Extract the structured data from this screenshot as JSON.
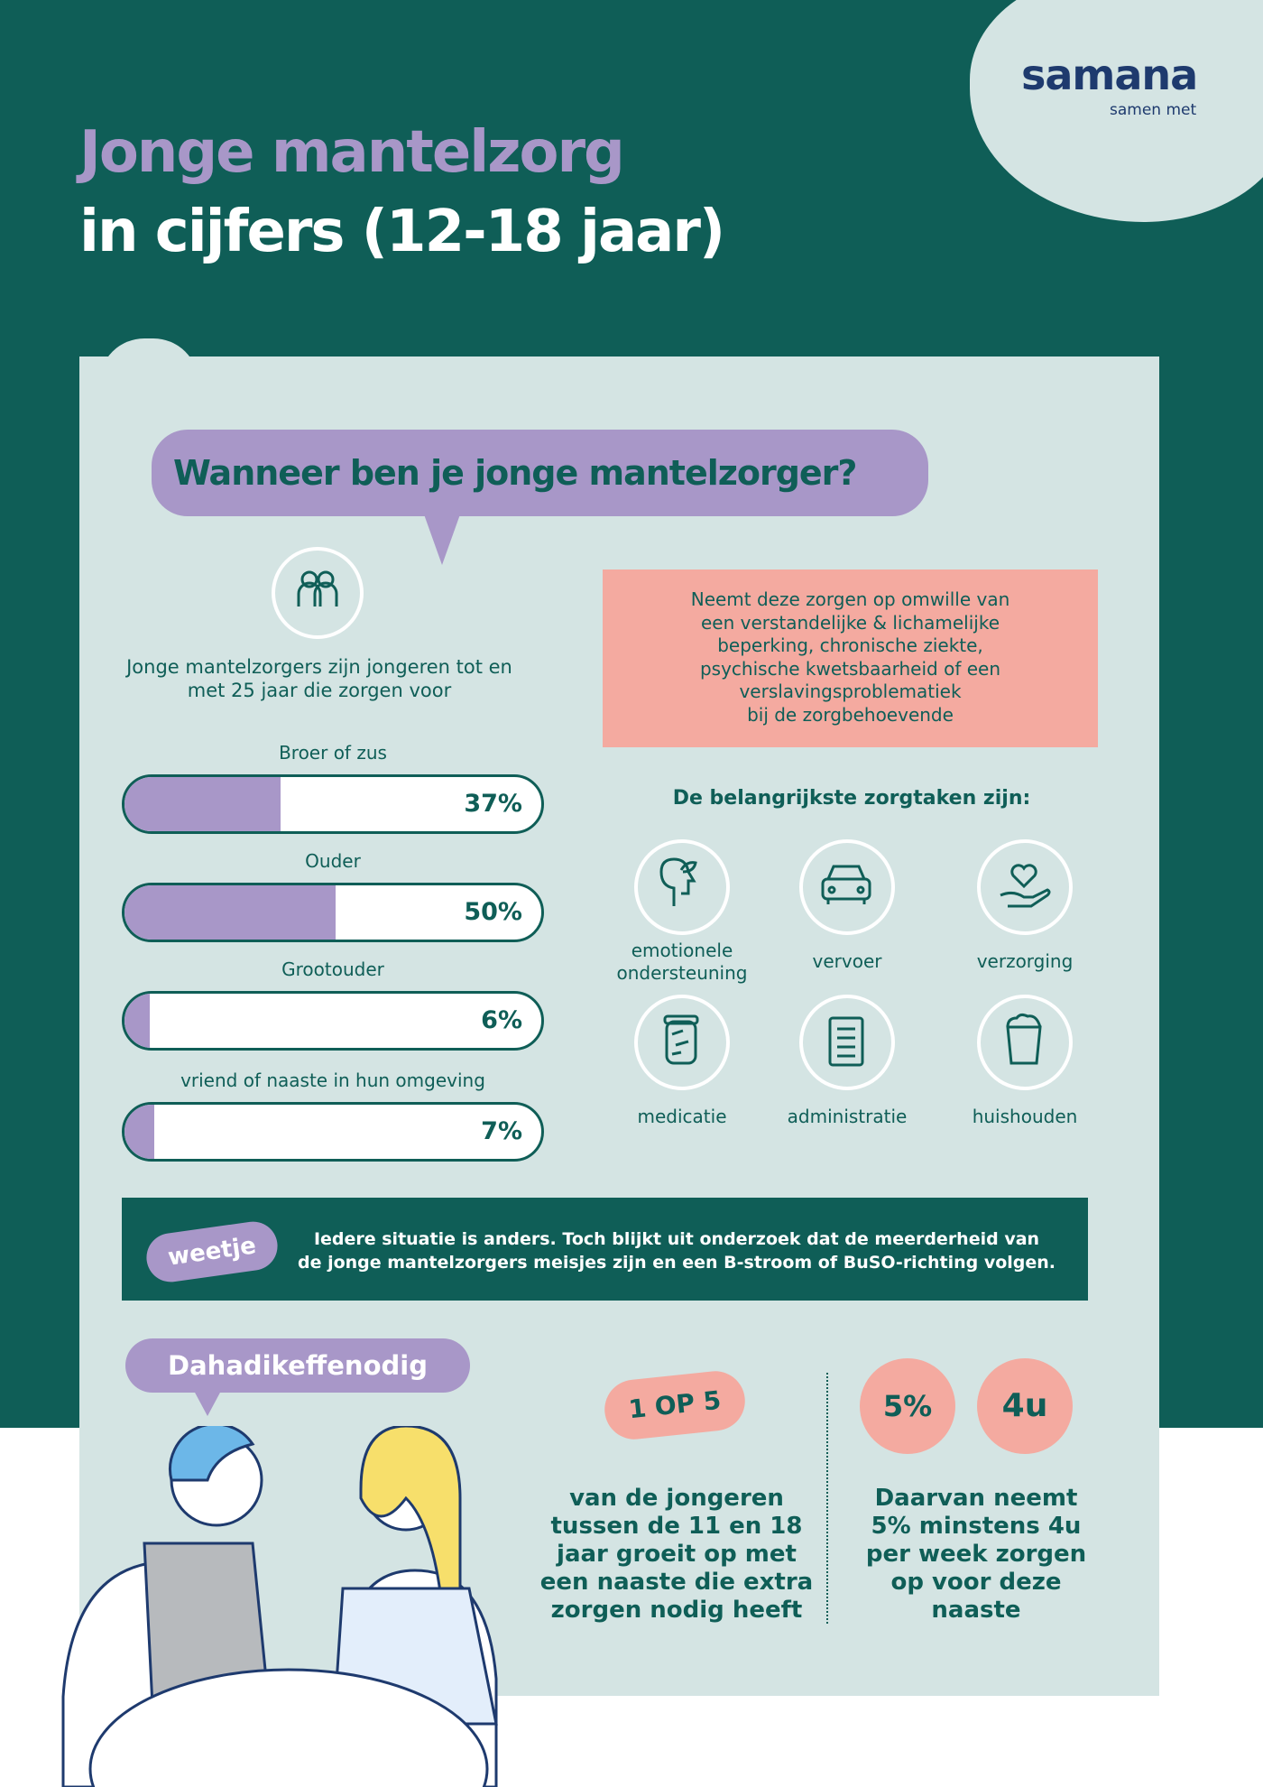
{
  "logo": {
    "name": "samana",
    "tagline": "samen met"
  },
  "header": {
    "title_line1": "Jonge mantelzorg",
    "title_line2": "in cijfers (12-18 jaar)"
  },
  "section": {
    "title": "Wanneer ben je jonge mantelzorger?",
    "intro_lines": [
      "Jonge mantelzorgers zijn jongeren tot en",
      "met 25 jaar die zorgen voor"
    ],
    "bars": {
      "xlim": [
        0,
        100
      ],
      "items": [
        {
          "label": "Broer of zus",
          "value": 37,
          "value_label": "37%"
        },
        {
          "label": "Ouder",
          "value": 50,
          "value_label": "50%"
        },
        {
          "label": "Grootouder",
          "value": 6,
          "value_label": "6%"
        },
        {
          "label": "vriend of naaste in hun omgeving",
          "value": 7,
          "value_label": "7%"
        }
      ]
    },
    "reason_lines": [
      "Neemt deze zorgen op omwille van",
      "een verstandelijke & lichamelijke",
      "beperking, chronische ziekte,",
      "psychische kwetsbaarheid of een",
      "verslavingsproblematiek",
      "bij de zorgbehoevende"
    ],
    "tasks_title": "De belangrijkste zorgtaken zijn:",
    "tasks": [
      "emotionele ondersteuning",
      "vervoer",
      "verzorging",
      "medicatie",
      "administratie",
      "huishouden"
    ]
  },
  "weetje": {
    "label": "weetje",
    "lines": [
      "Iedere situatie is anders. Toch blijkt uit onderzoek dat de meerderheid van",
      "de jonge mantelzorgers meisjes zijn en een B-stroom of BuSO-richting volgen."
    ]
  },
  "bottom": {
    "bubble": "Dahadikeffenodig",
    "stat1": {
      "badge": "1 OP 5",
      "lines": [
        "van de jongeren",
        "tussen de 11 en 18",
        "jaar groeit op met",
        "een naaste die extra",
        "zorgen nodig heeft"
      ]
    },
    "stat2": {
      "badge1": "5%",
      "badge2": "4u",
      "lines": [
        "Daarvan neemt",
        "5% minstens 4u",
        "per week zorgen",
        "op voor deze",
        "naaste"
      ]
    }
  }
}
